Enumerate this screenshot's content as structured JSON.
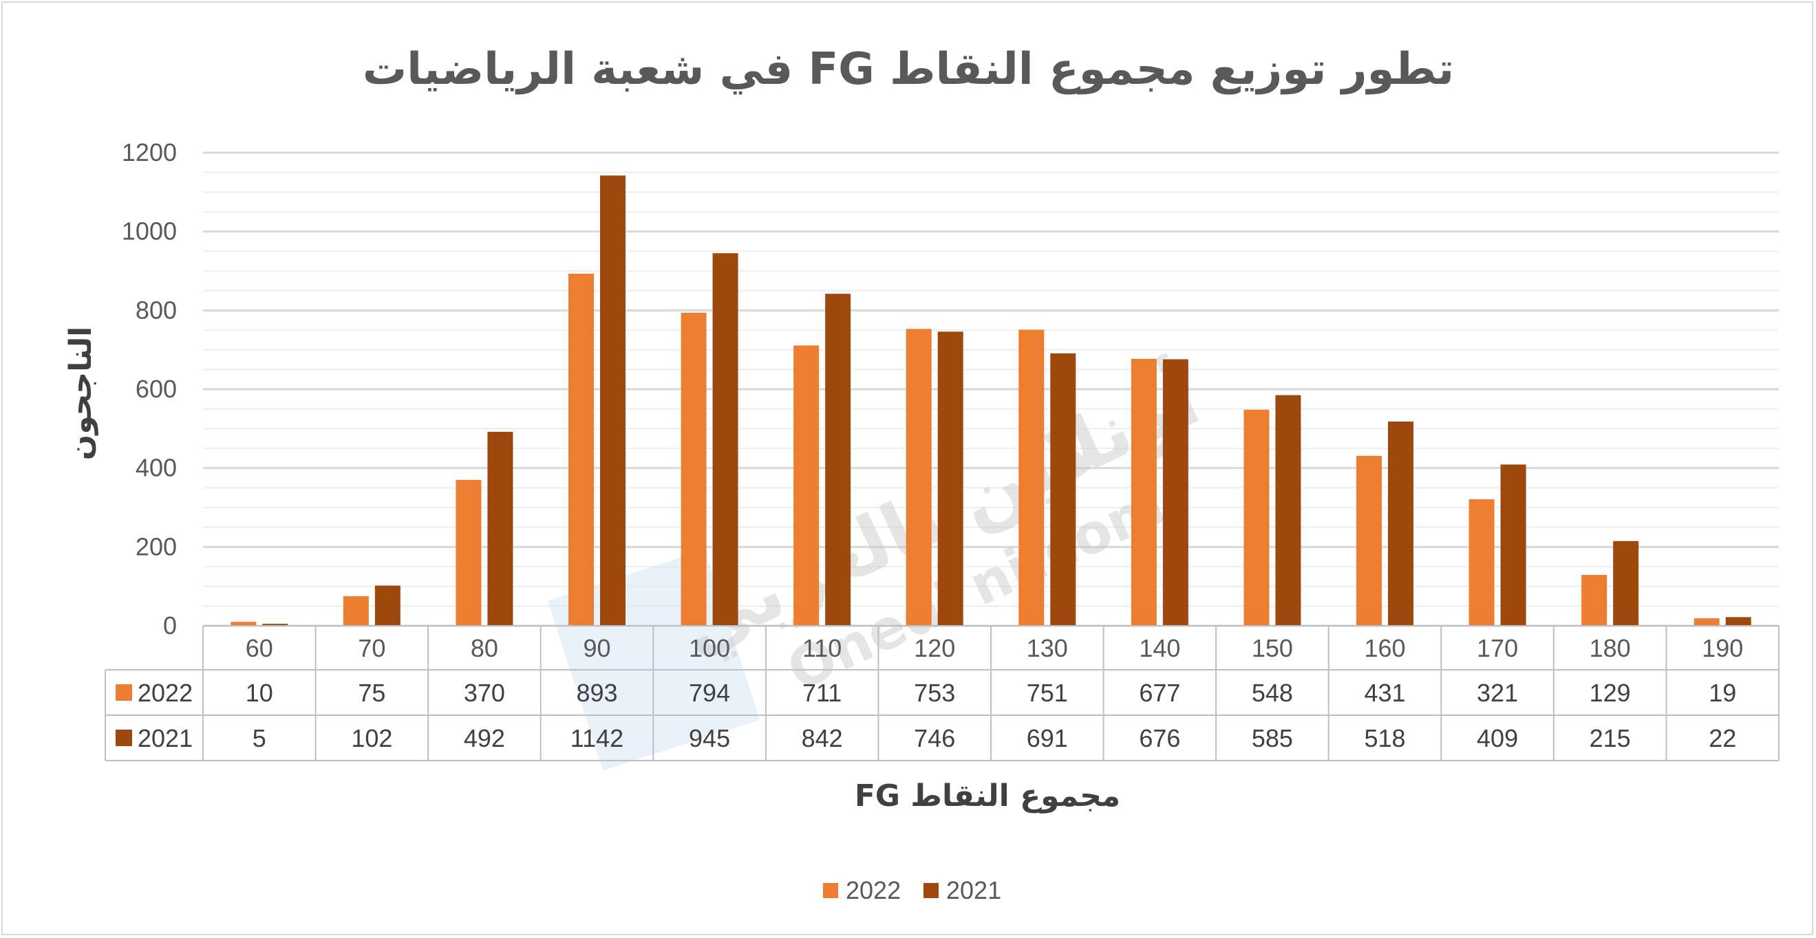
{
  "chart_data": {
    "type": "bar",
    "title": "تطور توزيع مجموع النقاط  FG  في شعبة الرياضيات",
    "xlabel": "مجموع النقاط FG",
    "ylabel": "الناجحون",
    "ylim": [
      0,
      1200
    ],
    "yticks": [
      0,
      200,
      400,
      600,
      800,
      1000,
      1200
    ],
    "categories": [
      "60",
      "70",
      "80",
      "90",
      "100",
      "110",
      "120",
      "130",
      "140",
      "150",
      "160",
      "170",
      "180",
      "190"
    ],
    "series": [
      {
        "name": "2022",
        "color": "#ed7d31",
        "values": [
          10,
          75,
          370,
          893,
          794,
          711,
          753,
          751,
          677,
          548,
          431,
          321,
          129,
          19
        ]
      },
      {
        "name": "2021",
        "color": "#9e480e",
        "values": [
          5,
          102,
          492,
          1142,
          945,
          842,
          746,
          691,
          676,
          585,
          518,
          409,
          215,
          22
        ]
      }
    ],
    "grid": true,
    "minor_grid": true,
    "data_table": true,
    "legend_position": "bottom"
  },
  "watermark": {
    "text_ar": "أونلاين بالعربي",
    "text_en": "Onedi ni.com"
  }
}
